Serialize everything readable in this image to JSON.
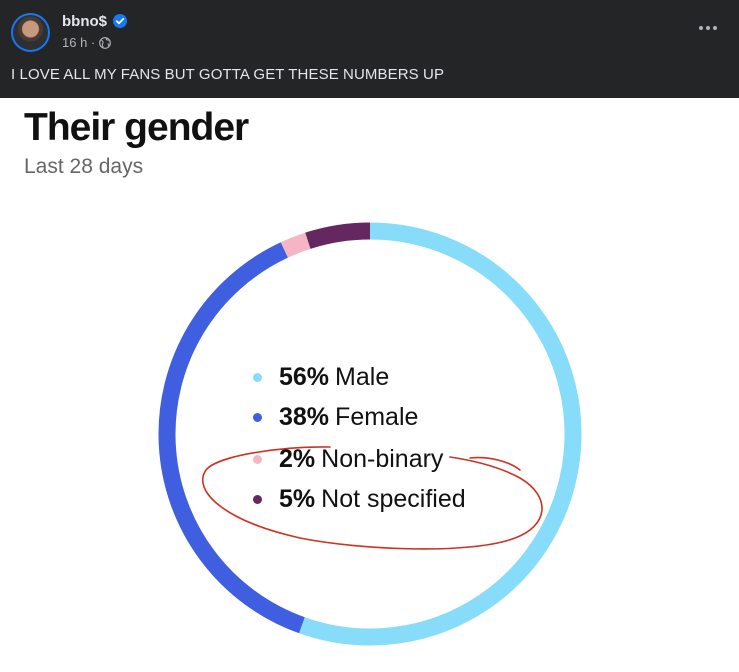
{
  "post": {
    "author": "bbno$",
    "time": "16 h ·",
    "caption": "I LOVE ALL MY FANS BUT GOTTA GET THESE NUMBERS UP"
  },
  "card": {
    "title": "Their gender",
    "subtitle": "Last 28 days"
  },
  "colors": {
    "male": "#86dcf9",
    "female": "#3f5fe0",
    "non_binary": "#f5b5c4",
    "not_specified": "#642760",
    "annotation": "#cc3322"
  },
  "icons": [
    "verified-badge-icon",
    "globe-icon",
    "more-options-icon"
  ],
  "chart_data": {
    "type": "pie",
    "title": "Their gender",
    "subtitle": "Last 28 days",
    "categories": [
      "Male",
      "Female",
      "Non-binary",
      "Not specified"
    ],
    "values": [
      56,
      38,
      2,
      5
    ],
    "labels": [
      "56%",
      "38%",
      "2%",
      "5%"
    ],
    "colors": [
      "#86dcf9",
      "#3f5fe0",
      "#f5b5c4",
      "#642760"
    ]
  }
}
